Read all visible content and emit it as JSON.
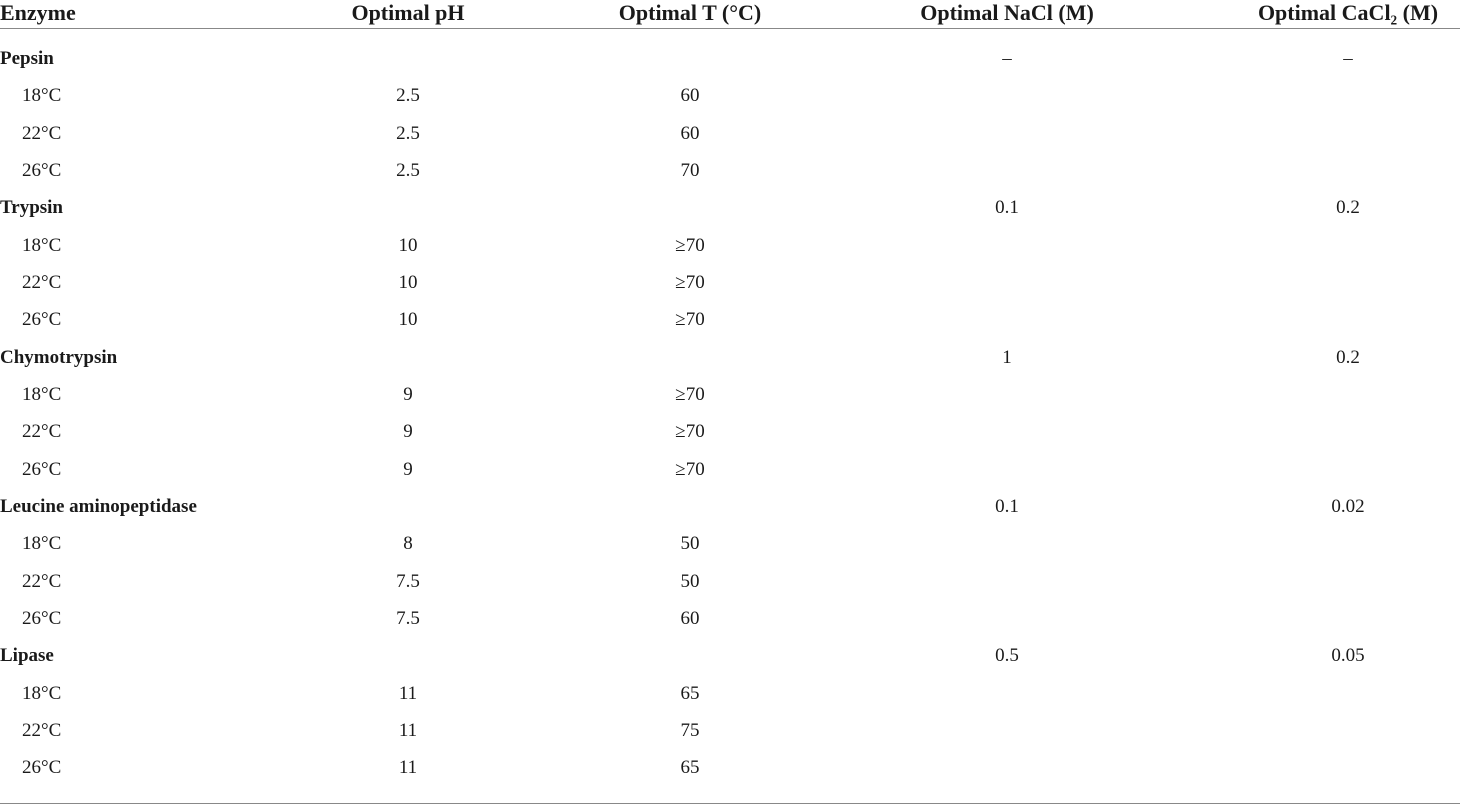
{
  "table": {
    "headers": [
      "Enzyme",
      "Optimal pH",
      "Optimal T (°C)",
      "Optimal NaCl (M)",
      "Optimal CaCl₂ (M)"
    ],
    "groups": [
      {
        "name": "Pepsin",
        "nacl": "–",
        "cacl2": "–",
        "rows": [
          {
            "temp": "18°C",
            "ph": 2.5,
            "t": 60
          },
          {
            "temp": "22°C",
            "ph": 2.5,
            "t": 60
          },
          {
            "temp": "26°C",
            "ph": 2.5,
            "t": 70
          }
        ]
      },
      {
        "name": "Trypsin",
        "nacl": 0.1,
        "cacl2": 0.2,
        "rows": [
          {
            "temp": "18°C",
            "ph": 10,
            "t": "≥70"
          },
          {
            "temp": "22°C",
            "ph": 10,
            "t": "≥70"
          },
          {
            "temp": "26°C",
            "ph": 10,
            "t": "≥70"
          }
        ]
      },
      {
        "name": "Chymotrypsin",
        "nacl": 1,
        "cacl2": 0.2,
        "rows": [
          {
            "temp": "18°C",
            "ph": 9,
            "t": "≥70"
          },
          {
            "temp": "22°C",
            "ph": 9,
            "t": "≥70"
          },
          {
            "temp": "26°C",
            "ph": 9,
            "t": "≥70"
          }
        ]
      },
      {
        "name": "Leucine aminopeptidase",
        "nacl": 0.1,
        "cacl2": 0.02,
        "rows": [
          {
            "temp": "18°C",
            "ph": 8,
            "t": 50
          },
          {
            "temp": "22°C",
            "ph": 7.5,
            "t": 50
          },
          {
            "temp": "26°C",
            "ph": 7.5,
            "t": 60
          }
        ]
      },
      {
        "name": "Lipase",
        "nacl": 0.5,
        "cacl2": 0.05,
        "rows": [
          {
            "temp": "18°C",
            "ph": 11,
            "t": 65
          },
          {
            "temp": "22°C",
            "ph": 11,
            "t": 75
          },
          {
            "temp": "26°C",
            "ph": 11,
            "t": 65
          }
        ]
      }
    ]
  }
}
